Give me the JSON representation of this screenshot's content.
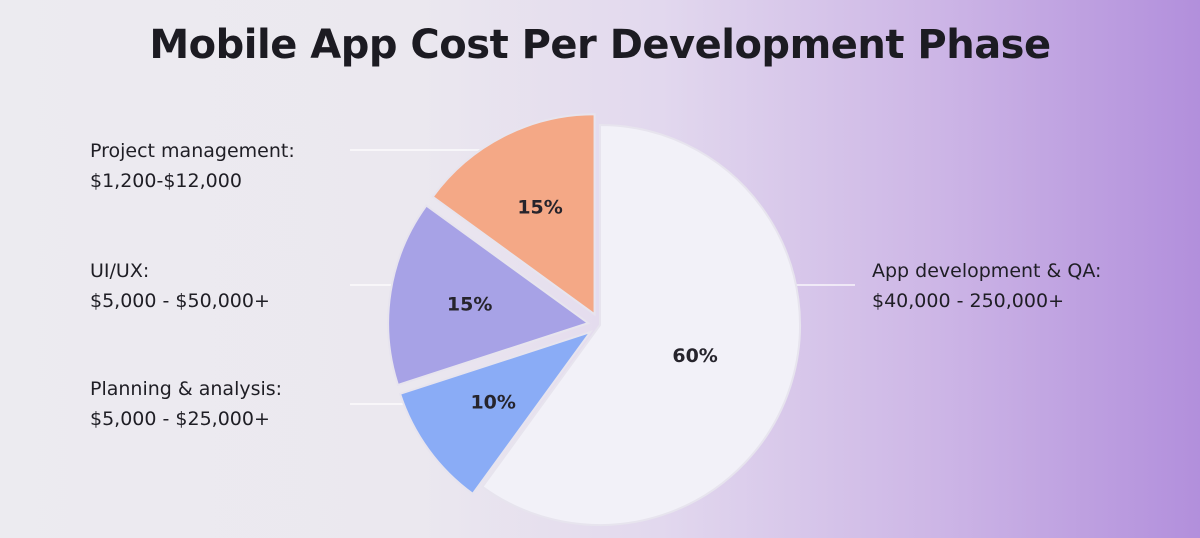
{
  "chart_data": {
    "type": "pie",
    "title": "Mobile App Cost Per Development Phase",
    "slices": [
      {
        "name": "App development & QA:",
        "range": "$40,000 - 250,000+",
        "value": 60,
        "label": "60%",
        "color": "#f2f1f8"
      },
      {
        "name": "Planning & analysis:",
        "range": "$5,000 - $25,000+",
        "value": 10,
        "label": "10%",
        "color": "#8aacf6"
      },
      {
        "name": "UI/UX:",
        "range": "$5,000 - $50,000+",
        "value": 15,
        "label": "15%",
        "color": "#a7a2e6"
      },
      {
        "name": "Project management:",
        "range": "$1,200-$12,000",
        "value": 15,
        "label": "15%",
        "color": "#f4a886"
      }
    ]
  }
}
